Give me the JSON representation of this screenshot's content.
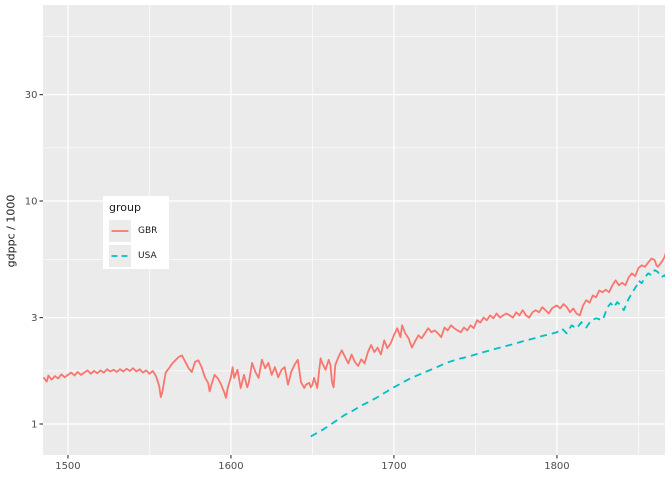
{
  "colors": {
    "panel_bg": "#EBEBEB",
    "grid": "#FFFFFF",
    "tick_mark": "#333333",
    "axis_text": "#4D4D4D",
    "title_text": "#1A1A1A",
    "legend_bg": "#FFFFFF",
    "legend_key_bg": "#EBEBEB",
    "gbr": "#F8766D",
    "usa": "#00BFC4"
  },
  "chart_data": {
    "type": "line",
    "title": "",
    "xlabel": "",
    "ylabel": "gdppc / 1000",
    "y_scale": "log10",
    "grid": true,
    "xlim": [
      1484.7,
      1866.3
    ],
    "ylim": [
      0.726,
      75.7
    ],
    "x_ticks": [
      1500,
      1600,
      1700,
      1800
    ],
    "x_tick_labels": [
      "1500",
      "1600",
      "1700",
      "1800"
    ],
    "x_minor_breaks": [
      1550,
      1650,
      1750,
      1850
    ],
    "y_ticks": [
      1,
      3,
      10,
      30
    ],
    "y_tick_labels": [
      "1",
      "3",
      "10",
      "30"
    ],
    "y_minor_breaks": [
      1.7321,
      5.4772,
      17.3205,
      54.7723
    ],
    "legend": {
      "title": "group",
      "position": "inside-upper-left",
      "entries": [
        {
          "label": "GBR",
          "color": "#F8766D",
          "linetype": "solid"
        },
        {
          "label": "USA",
          "color": "#00BFC4",
          "linetype": "dashed"
        }
      ]
    },
    "series": [
      {
        "name": "GBR",
        "color": "#F8766D",
        "linetype": "solid",
        "points": [
          [
            1485,
            1.62
          ],
          [
            1487,
            1.55
          ],
          [
            1488,
            1.65
          ],
          [
            1490,
            1.58
          ],
          [
            1492,
            1.64
          ],
          [
            1494,
            1.6
          ],
          [
            1496,
            1.67
          ],
          [
            1498,
            1.62
          ],
          [
            1500,
            1.66
          ],
          [
            1502,
            1.7
          ],
          [
            1504,
            1.65
          ],
          [
            1506,
            1.71
          ],
          [
            1508,
            1.66
          ],
          [
            1510,
            1.7
          ],
          [
            1512,
            1.74
          ],
          [
            1514,
            1.68
          ],
          [
            1516,
            1.73
          ],
          [
            1518,
            1.69
          ],
          [
            1520,
            1.74
          ],
          [
            1522,
            1.7
          ],
          [
            1524,
            1.76
          ],
          [
            1526,
            1.72
          ],
          [
            1528,
            1.75
          ],
          [
            1530,
            1.71
          ],
          [
            1532,
            1.76
          ],
          [
            1534,
            1.72
          ],
          [
            1536,
            1.77
          ],
          [
            1538,
            1.73
          ],
          [
            1540,
            1.78
          ],
          [
            1542,
            1.72
          ],
          [
            1544,
            1.76
          ],
          [
            1546,
            1.7
          ],
          [
            1548,
            1.74
          ],
          [
            1550,
            1.68
          ],
          [
            1552,
            1.73
          ],
          [
            1554,
            1.64
          ],
          [
            1556,
            1.48
          ],
          [
            1557,
            1.32
          ],
          [
            1558,
            1.4
          ],
          [
            1559,
            1.55
          ],
          [
            1560,
            1.7
          ],
          [
            1562,
            1.78
          ],
          [
            1564,
            1.87
          ],
          [
            1566,
            1.93
          ],
          [
            1568,
            2.0
          ],
          [
            1570,
            2.03
          ],
          [
            1572,
            1.9
          ],
          [
            1574,
            1.78
          ],
          [
            1576,
            1.71
          ],
          [
            1578,
            1.9
          ],
          [
            1580,
            1.93
          ],
          [
            1582,
            1.8
          ],
          [
            1584,
            1.62
          ],
          [
            1586,
            1.53
          ],
          [
            1587,
            1.4
          ],
          [
            1588,
            1.5
          ],
          [
            1590,
            1.66
          ],
          [
            1592,
            1.6
          ],
          [
            1594,
            1.5
          ],
          [
            1596,
            1.38
          ],
          [
            1597,
            1.31
          ],
          [
            1598,
            1.45
          ],
          [
            1600,
            1.62
          ],
          [
            1601,
            1.8
          ],
          [
            1602,
            1.61
          ],
          [
            1604,
            1.75
          ],
          [
            1606,
            1.45
          ],
          [
            1608,
            1.66
          ],
          [
            1610,
            1.46
          ],
          [
            1611,
            1.54
          ],
          [
            1613,
            1.88
          ],
          [
            1615,
            1.71
          ],
          [
            1617,
            1.61
          ],
          [
            1619,
            1.94
          ],
          [
            1621,
            1.78
          ],
          [
            1623,
            1.88
          ],
          [
            1625,
            1.66
          ],
          [
            1627,
            1.8
          ],
          [
            1629,
            1.62
          ],
          [
            1631,
            1.75
          ],
          [
            1633,
            1.8
          ],
          [
            1635,
            1.5
          ],
          [
            1637,
            1.71
          ],
          [
            1639,
            1.84
          ],
          [
            1641,
            1.94
          ],
          [
            1643,
            1.54
          ],
          [
            1645,
            1.45
          ],
          [
            1646,
            1.5
          ],
          [
            1648,
            1.53
          ],
          [
            1649,
            1.46
          ],
          [
            1650,
            1.5
          ],
          [
            1651,
            1.61
          ],
          [
            1652,
            1.53
          ],
          [
            1653,
            1.45
          ],
          [
            1654,
            1.71
          ],
          [
            1655,
            1.97
          ],
          [
            1656,
            1.88
          ],
          [
            1658,
            1.75
          ],
          [
            1660,
            1.94
          ],
          [
            1661,
            1.84
          ],
          [
            1662,
            1.54
          ],
          [
            1663,
            1.46
          ],
          [
            1664,
            1.84
          ],
          [
            1666,
            2.0
          ],
          [
            1668,
            2.14
          ],
          [
            1670,
            2.0
          ],
          [
            1672,
            1.87
          ],
          [
            1674,
            2.05
          ],
          [
            1676,
            1.9
          ],
          [
            1678,
            1.82
          ],
          [
            1680,
            1.95
          ],
          [
            1682,
            1.87
          ],
          [
            1684,
            2.1
          ],
          [
            1686,
            2.26
          ],
          [
            1688,
            2.1
          ],
          [
            1690,
            2.2
          ],
          [
            1692,
            2.05
          ],
          [
            1694,
            2.37
          ],
          [
            1696,
            2.19
          ],
          [
            1698,
            2.3
          ],
          [
            1700,
            2.5
          ],
          [
            1702,
            2.69
          ],
          [
            1704,
            2.45
          ],
          [
            1705,
            2.77
          ],
          [
            1707,
            2.55
          ],
          [
            1709,
            2.42
          ],
          [
            1711,
            2.2
          ],
          [
            1713,
            2.35
          ],
          [
            1715,
            2.5
          ],
          [
            1717,
            2.42
          ],
          [
            1719,
            2.55
          ],
          [
            1721,
            2.69
          ],
          [
            1723,
            2.58
          ],
          [
            1725,
            2.63
          ],
          [
            1727,
            2.55
          ],
          [
            1729,
            2.45
          ],
          [
            1731,
            2.71
          ],
          [
            1733,
            2.63
          ],
          [
            1735,
            2.77
          ],
          [
            1737,
            2.69
          ],
          [
            1739,
            2.63
          ],
          [
            1741,
            2.58
          ],
          [
            1743,
            2.71
          ],
          [
            1745,
            2.63
          ],
          [
            1747,
            2.77
          ],
          [
            1749,
            2.69
          ],
          [
            1751,
            2.92
          ],
          [
            1753,
            2.85
          ],
          [
            1755,
            3.0
          ],
          [
            1757,
            2.92
          ],
          [
            1759,
            3.07
          ],
          [
            1761,
            2.98
          ],
          [
            1763,
            3.13
          ],
          [
            1765,
            3.0
          ],
          [
            1767,
            3.07
          ],
          [
            1769,
            3.13
          ],
          [
            1771,
            3.07
          ],
          [
            1773,
            3.0
          ],
          [
            1775,
            3.17
          ],
          [
            1777,
            3.07
          ],
          [
            1779,
            3.24
          ],
          [
            1781,
            3.07
          ],
          [
            1783,
            3.0
          ],
          [
            1785,
            3.17
          ],
          [
            1787,
            3.24
          ],
          [
            1789,
            3.17
          ],
          [
            1791,
            3.34
          ],
          [
            1793,
            3.24
          ],
          [
            1795,
            3.13
          ],
          [
            1797,
            3.3
          ],
          [
            1799,
            3.38
          ],
          [
            1800,
            3.4
          ],
          [
            1802,
            3.3
          ],
          [
            1804,
            3.45
          ],
          [
            1806,
            3.35
          ],
          [
            1808,
            3.17
          ],
          [
            1810,
            3.3
          ],
          [
            1812,
            3.13
          ],
          [
            1814,
            3.07
          ],
          [
            1816,
            3.4
          ],
          [
            1818,
            3.59
          ],
          [
            1820,
            3.5
          ],
          [
            1822,
            3.77
          ],
          [
            1824,
            3.7
          ],
          [
            1826,
            3.97
          ],
          [
            1828,
            3.9
          ],
          [
            1830,
            4.0
          ],
          [
            1832,
            3.9
          ],
          [
            1834,
            4.19
          ],
          [
            1836,
            4.41
          ],
          [
            1838,
            4.19
          ],
          [
            1840,
            4.3
          ],
          [
            1842,
            4.19
          ],
          [
            1844,
            4.55
          ],
          [
            1846,
            4.74
          ],
          [
            1848,
            4.6
          ],
          [
            1850,
            5.0
          ],
          [
            1852,
            5.15
          ],
          [
            1854,
            5.07
          ],
          [
            1856,
            5.3
          ],
          [
            1858,
            5.53
          ],
          [
            1860,
            5.43
          ],
          [
            1861,
            5.15
          ],
          [
            1862,
            5.07
          ],
          [
            1864,
            5.3
          ],
          [
            1866,
            5.6
          ],
          [
            1867,
            5.9
          ]
        ]
      },
      {
        "name": "USA",
        "color": "#00BFC4",
        "linetype": "dashed",
        "points": [
          [
            1649,
            0.88
          ],
          [
            1655,
            0.93
          ],
          [
            1660,
            0.98
          ],
          [
            1665,
            1.04
          ],
          [
            1670,
            1.1
          ],
          [
            1675,
            1.15
          ],
          [
            1680,
            1.21
          ],
          [
            1685,
            1.26
          ],
          [
            1690,
            1.32
          ],
          [
            1695,
            1.39
          ],
          [
            1700,
            1.46
          ],
          [
            1705,
            1.53
          ],
          [
            1710,
            1.6
          ],
          [
            1715,
            1.66
          ],
          [
            1720,
            1.72
          ],
          [
            1725,
            1.78
          ],
          [
            1730,
            1.85
          ],
          [
            1734,
            1.9
          ],
          [
            1740,
            1.96
          ],
          [
            1745,
            2.0
          ],
          [
            1750,
            2.05
          ],
          [
            1755,
            2.1
          ],
          [
            1760,
            2.15
          ],
          [
            1766,
            2.21
          ],
          [
            1770,
            2.25
          ],
          [
            1775,
            2.3
          ],
          [
            1780,
            2.36
          ],
          [
            1785,
            2.41
          ],
          [
            1790,
            2.47
          ],
          [
            1795,
            2.52
          ],
          [
            1800,
            2.58
          ],
          [
            1803,
            2.68
          ],
          [
            1806,
            2.55
          ],
          [
            1809,
            2.77
          ],
          [
            1812,
            2.68
          ],
          [
            1815,
            2.86
          ],
          [
            1818,
            2.71
          ],
          [
            1821,
            2.92
          ],
          [
            1824,
            2.98
          ],
          [
            1828,
            2.92
          ],
          [
            1831,
            3.34
          ],
          [
            1833,
            3.48
          ],
          [
            1835,
            3.34
          ],
          [
            1837,
            3.52
          ],
          [
            1839,
            3.41
          ],
          [
            1841,
            3.24
          ],
          [
            1844,
            3.65
          ],
          [
            1846,
            3.85
          ],
          [
            1847,
            3.97
          ],
          [
            1849,
            4.19
          ],
          [
            1850,
            4.4
          ],
          [
            1852,
            4.28
          ],
          [
            1854,
            4.55
          ],
          [
            1856,
            4.74
          ],
          [
            1858,
            4.65
          ],
          [
            1860,
            4.9
          ],
          [
            1862,
            4.8
          ],
          [
            1864,
            4.55
          ],
          [
            1866,
            4.65
          ],
          [
            1867,
            4.55
          ]
        ]
      }
    ]
  }
}
